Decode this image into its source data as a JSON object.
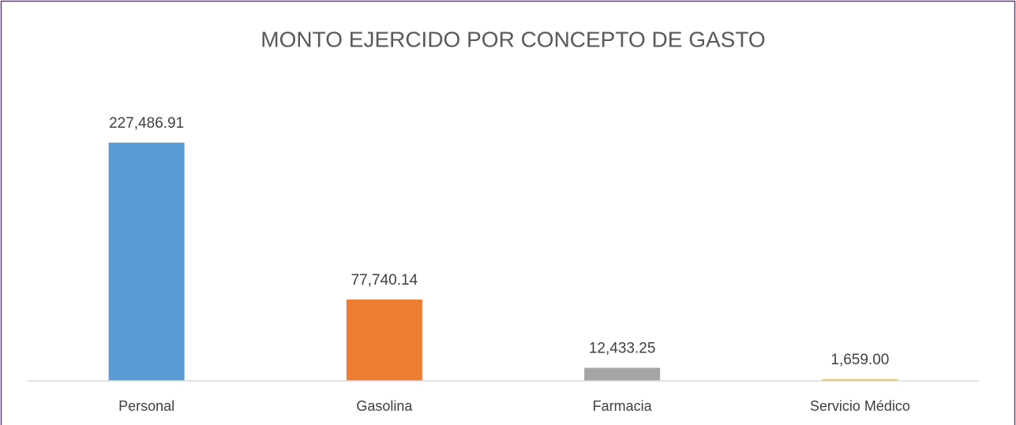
{
  "chart_data": {
    "type": "bar",
    "title": "MONTO EJERCIDO POR CONCEPTO DE GASTO",
    "categories": [
      "Personal",
      "Gasolina",
      "Farmacia",
      "Servicio Médico"
    ],
    "values": [
      227486.91,
      77740.14,
      12433.25,
      1659.0
    ],
    "value_labels": [
      "227,486.91",
      "77,740.14",
      "12,433.25",
      "1,659.00"
    ],
    "colors": [
      "#5b9bd5",
      "#ed7d31",
      "#a5a5a5",
      "#ffc000"
    ],
    "ylim": [
      0,
      250000
    ]
  }
}
